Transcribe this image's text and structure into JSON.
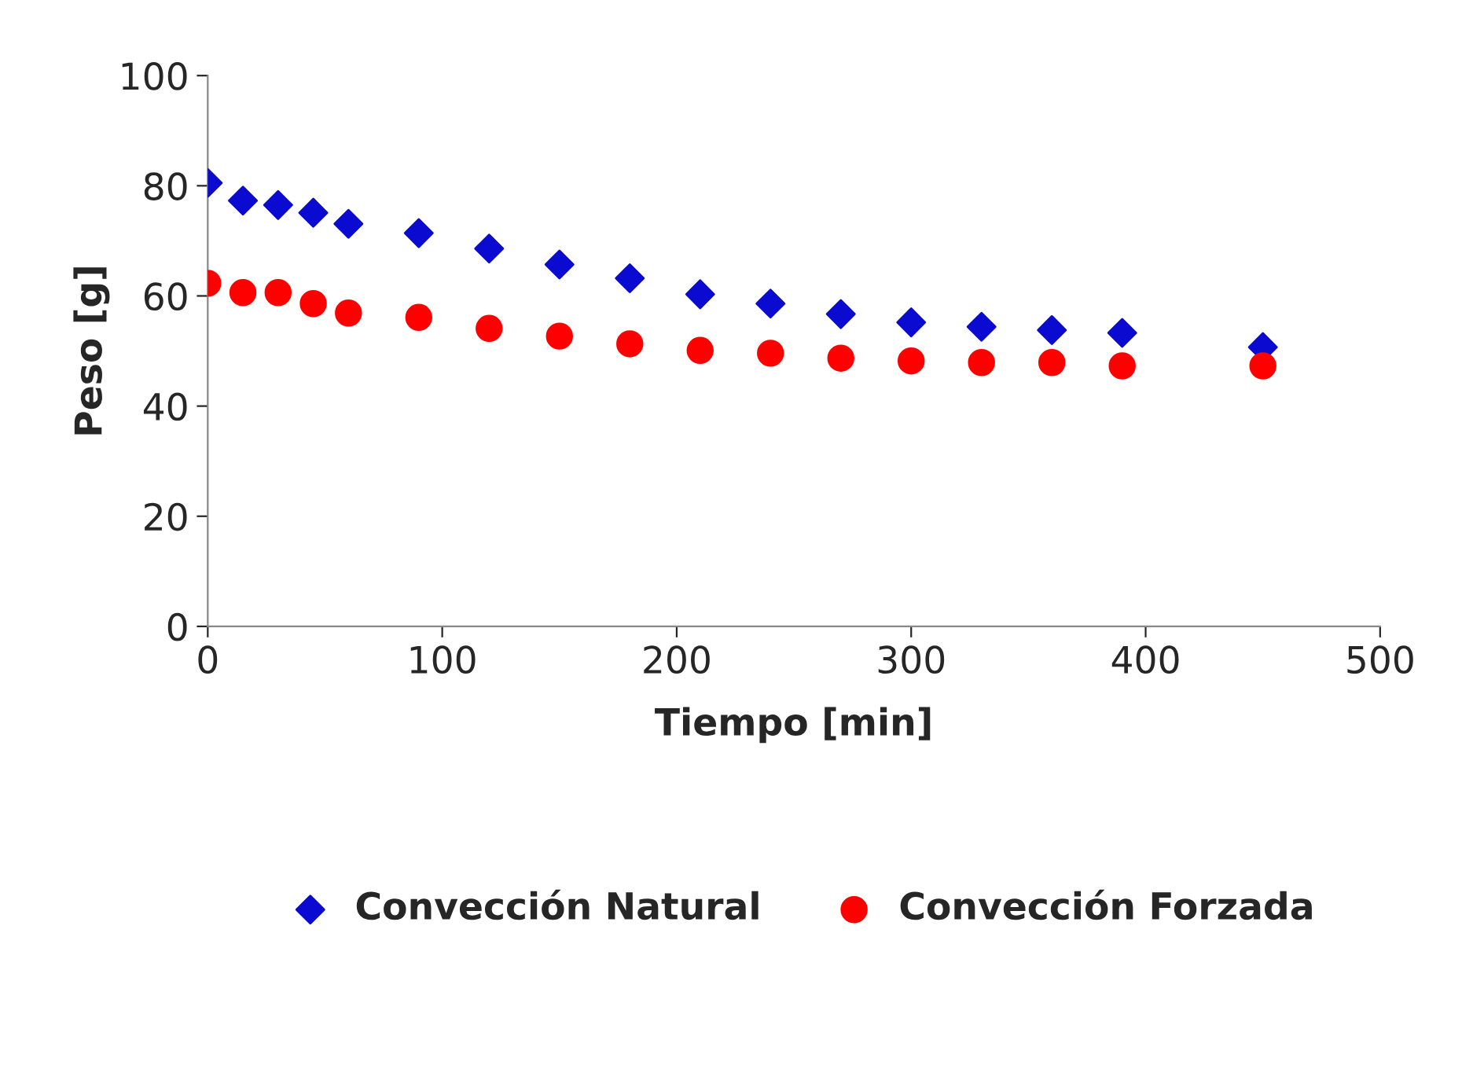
{
  "chart_data": {
    "type": "scatter",
    "xlabel": "Tiempo [min]",
    "ylabel": "Peso [g]",
    "xlim": [
      0,
      500
    ],
    "xticks": [
      0,
      100,
      200,
      300,
      400,
      500
    ],
    "ylim": [
      0,
      100
    ],
    "yticks": [
      0,
      20,
      40,
      60,
      80,
      100
    ],
    "grid": false,
    "legend": "bottom",
    "x": [
      0,
      15,
      30,
      45,
      60,
      90,
      120,
      150,
      180,
      210,
      240,
      270,
      300,
      330,
      360,
      390,
      450
    ],
    "series": [
      {
        "name": "Convección Natural",
        "color": "#0a0ad0",
        "marker": "diamond",
        "values": [
          80.5,
          77.3,
          76.5,
          75.1,
          73.1,
          71.4,
          68.6,
          65.7,
          63.2,
          60.3,
          58.6,
          56.7,
          55.2,
          54.4,
          53.8,
          53.3,
          50.7
        ]
      },
      {
        "name": "Convección Forzada",
        "color": "#ff0000",
        "marker": "circle",
        "values": [
          62.3,
          60.6,
          60.6,
          58.6,
          56.9,
          56.1,
          54.1,
          52.7,
          51.3,
          50.1,
          49.6,
          48.7,
          48.2,
          47.9,
          47.9,
          47.3,
          47.3
        ]
      }
    ]
  }
}
